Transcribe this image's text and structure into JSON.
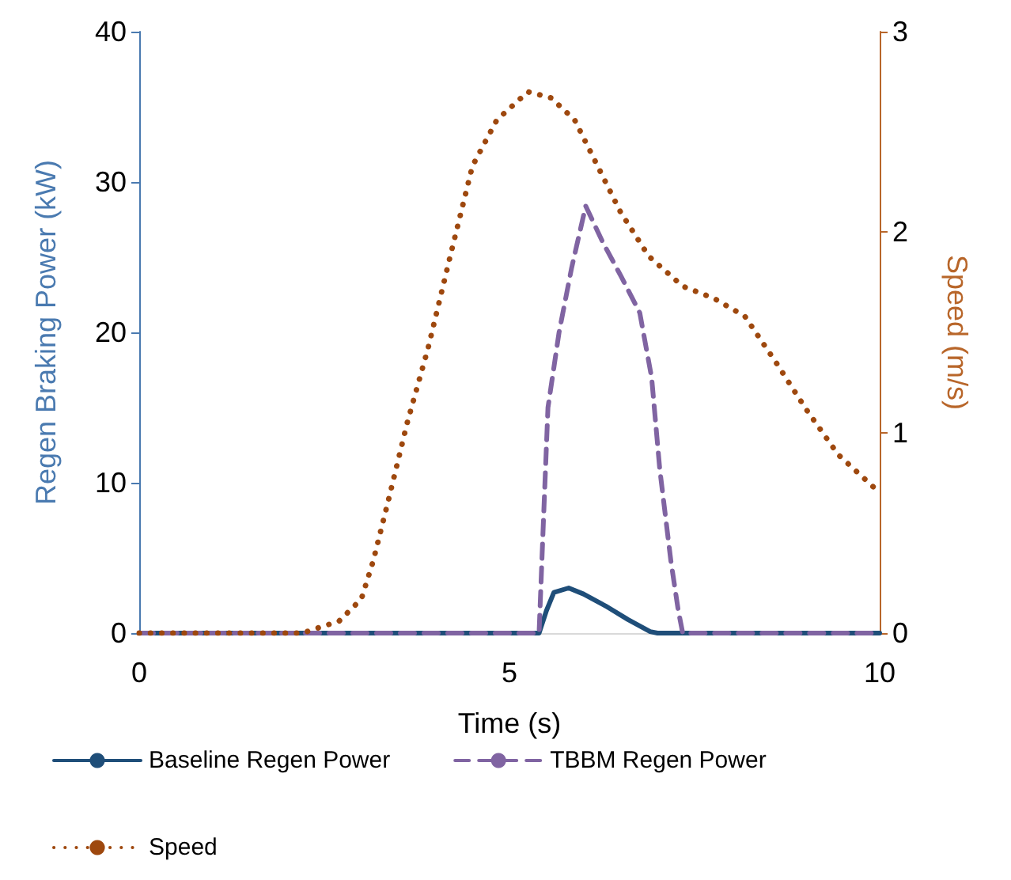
{
  "chart_data": {
    "type": "line",
    "xlabel": "Time (s)",
    "ylabel": "Regen Braking Power (kW)",
    "y2label": "Speed (m/s)",
    "xlim": [
      0,
      10
    ],
    "xticks": [
      0,
      5,
      10
    ],
    "ylim": [
      0,
      40
    ],
    "yticks": [
      0,
      10,
      20,
      30,
      40
    ],
    "y2lim": [
      0,
      3
    ],
    "y2ticks": [
      0,
      1,
      2,
      3
    ],
    "grid": false,
    "legend": "bottom",
    "marker": "none",
    "series": [
      {
        "name": "Baseline Regen Power",
        "color": "#1f4e79",
        "line_style": "solid",
        "x": [
          0,
          5.4,
          5.5,
          5.6,
          5.8,
          6.0,
          6.3,
          6.6,
          6.9,
          7.0,
          10
        ],
        "values": [
          0,
          0,
          1.5,
          2.7,
          3.0,
          2.6,
          1.8,
          0.9,
          0.1,
          0,
          0
        ]
      },
      {
        "name": "TBBM Regen Power",
        "color": "#8064a2",
        "line_style": "dashed",
        "x": [
          0,
          5.4,
          5.46,
          5.52,
          5.67,
          5.84,
          6.03,
          6.26,
          6.51,
          6.76,
          6.92,
          7.03,
          7.18,
          7.28,
          7.34,
          10
        ],
        "values": [
          0,
          0,
          7.6,
          15,
          20,
          24.3,
          28.4,
          26,
          23.7,
          21.3,
          17,
          10.9,
          4.8,
          1.5,
          0,
          0
        ]
      },
      {
        "name": "Speed",
        "color": "#9e480e",
        "line_style": "dotted",
        "axis": "y2",
        "x": [
          0,
          2.2,
          2.7,
          3.0,
          3.16,
          3.37,
          3.62,
          3.9,
          4.2,
          4.5,
          4.83,
          5.25,
          5.56,
          5.88,
          6.19,
          6.5,
          6.88,
          7.34,
          7.76,
          8.18,
          8.6,
          9.0,
          9.44,
          10
        ],
        "values": [
          0,
          0,
          0.06,
          0.17,
          0.36,
          0.67,
          1.05,
          1.42,
          1.88,
          2.33,
          2.56,
          2.7,
          2.67,
          2.56,
          2.33,
          2.1,
          1.88,
          1.73,
          1.67,
          1.58,
          1.35,
          1.12,
          0.89,
          0.7
        ]
      }
    ]
  }
}
